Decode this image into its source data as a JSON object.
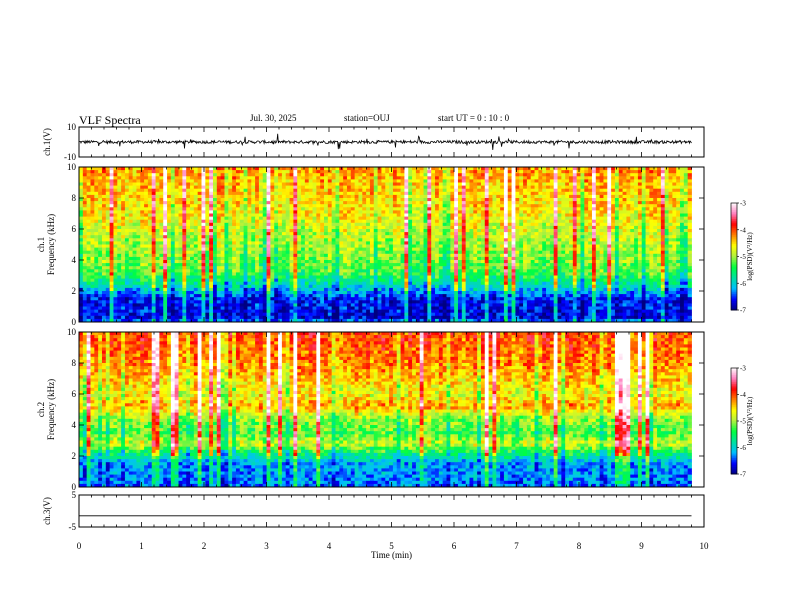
{
  "header": {
    "title": "VLF Spectra",
    "date": "Jul. 30, 2025",
    "station": "station=OUJ",
    "start_ut": "start  UT =   0 : 10 : 0"
  },
  "colors": {
    "frame": "#000000",
    "colormap": [
      "#000080",
      "#0000ff",
      "#00bfff",
      "#00e0a0",
      "#00ff40",
      "#b0f040",
      "#ffff00",
      "#ff8000",
      "#ff0000",
      "#ff80c0",
      "#ffffff"
    ]
  },
  "chart_data": [
    {
      "id": "ch1-waveform",
      "type": "line",
      "ylabel": "ch.1(V)",
      "ylim": [
        -10,
        10
      ],
      "yticks": [
        "10",
        "-10"
      ],
      "xlim": [
        0,
        10
      ],
      "baseline": 0,
      "noise_amplitude": 1,
      "data_end_min": 9.8
    },
    {
      "id": "ch1-spectrogram",
      "type": "heatmap",
      "ylabel_top": "ch.1",
      "ylabel": "Frequency (kHz)",
      "ylim": [
        0,
        10
      ],
      "yticks": [
        "0",
        "2",
        "4",
        "6",
        "8",
        "10"
      ],
      "xlim": [
        0,
        10
      ],
      "data_end_min": 9.8,
      "colorbar": {
        "label": "log(PSD)(V²/Hz)",
        "range": [
          -7,
          -3
        ],
        "ticks": [
          "-3",
          "-4",
          "-5",
          "-6",
          "-7"
        ]
      },
      "levels_by_freq_khz": [
        {
          "f": 0.0,
          "logpsd": -6.2
        },
        {
          "f": 0.3,
          "logpsd": -6.7
        },
        {
          "f": 1.5,
          "logpsd": -6.6
        },
        {
          "f": 2.2,
          "logpsd": -6.0
        },
        {
          "f": 2.6,
          "logpsd": -5.7
        },
        {
          "f": 3.2,
          "logpsd": -5.3
        },
        {
          "f": 4.0,
          "logpsd": -5.1
        },
        {
          "f": 5.5,
          "logpsd": -4.9
        },
        {
          "f": 7.0,
          "logpsd": -4.6
        },
        {
          "f": 10.0,
          "logpsd": -4.3
        }
      ]
    },
    {
      "id": "ch2-spectrogram",
      "type": "heatmap",
      "ylabel_top": "ch.2",
      "ylabel": "Frequency (kHz)",
      "ylim": [
        0,
        10
      ],
      "yticks": [
        "0",
        "2",
        "4",
        "6",
        "8",
        "10"
      ],
      "xlim": [
        0,
        10
      ],
      "data_end_min": 9.8,
      "colorbar": {
        "label": "log(PSD)(V²/Hz)",
        "range": [
          -7,
          -3
        ],
        "ticks": [
          "-3",
          "-4",
          "-5",
          "-6",
          "-7"
        ]
      },
      "levels_by_freq_khz": [
        {
          "f": 0.0,
          "logpsd": -6.4
        },
        {
          "f": 1.5,
          "logpsd": -6.2
        },
        {
          "f": 2.2,
          "logpsd": -5.6
        },
        {
          "f": 2.8,
          "logpsd": -4.8
        },
        {
          "f": 3.5,
          "logpsd": -5.3
        },
        {
          "f": 4.5,
          "logpsd": -5.0
        },
        {
          "f": 5.2,
          "logpsd": -4.3
        },
        {
          "f": 6.0,
          "logpsd": -4.7
        },
        {
          "f": 8.0,
          "logpsd": -4.2
        },
        {
          "f": 10.0,
          "logpsd": -4.0
        }
      ]
    },
    {
      "id": "ch3-waveform",
      "type": "line",
      "ylabel": "ch.3(V)",
      "ylim": [
        -5,
        5
      ],
      "yticks": [
        "5",
        "-5"
      ],
      "xlim": [
        0,
        10
      ],
      "baseline": -1.5,
      "noise_amplitude": 0,
      "data_end_min": 9.8
    },
    {
      "id": "time-axis",
      "type": "line",
      "xlabel": "Time (min)",
      "xticks": [
        "0",
        "1",
        "2",
        "3",
        "4",
        "5",
        "6",
        "7",
        "8",
        "9",
        "10"
      ]
    }
  ]
}
